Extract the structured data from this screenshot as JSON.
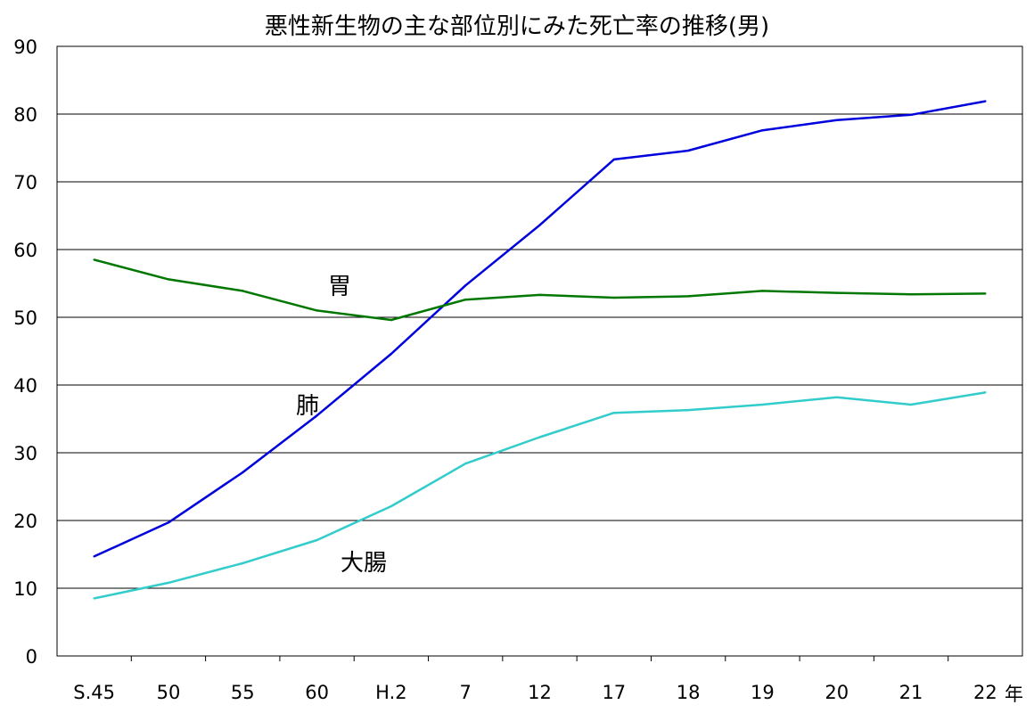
{
  "chart_data": {
    "type": "line",
    "title": "悪性新生物の主な部位別にみた死亡率の推移(男)",
    "xlabel": "年",
    "ylabel": "",
    "categories": [
      "S.45",
      "50",
      "55",
      "60",
      "H.2",
      "7",
      "12",
      "17",
      "18",
      "19",
      "20",
      "21",
      "22"
    ],
    "ylim": [
      0,
      90
    ],
    "yticks": [
      0,
      10,
      20,
      30,
      40,
      50,
      60,
      70,
      80,
      90
    ],
    "grid": true,
    "legend": "none",
    "series": [
      {
        "name": "肺",
        "color": "#0000dd",
        "values": [
          14.7,
          19.7,
          27.1,
          35.5,
          44.6,
          54.7,
          63.6,
          73.3,
          74.6,
          77.6,
          79.1,
          79.9,
          81.9
        ]
      },
      {
        "name": "胃",
        "color": "#007700",
        "values": [
          58.5,
          55.6,
          53.9,
          51.0,
          49.6,
          52.6,
          53.3,
          52.9,
          53.1,
          53.9,
          53.6,
          53.4,
          53.5
        ]
      },
      {
        "name": "大腸",
        "color": "#33cccc",
        "values": [
          8.5,
          10.8,
          13.7,
          17.1,
          22.1,
          28.4,
          32.3,
          35.9,
          36.3,
          37.1,
          38.2,
          37.1,
          38.9
        ]
      }
    ]
  }
}
